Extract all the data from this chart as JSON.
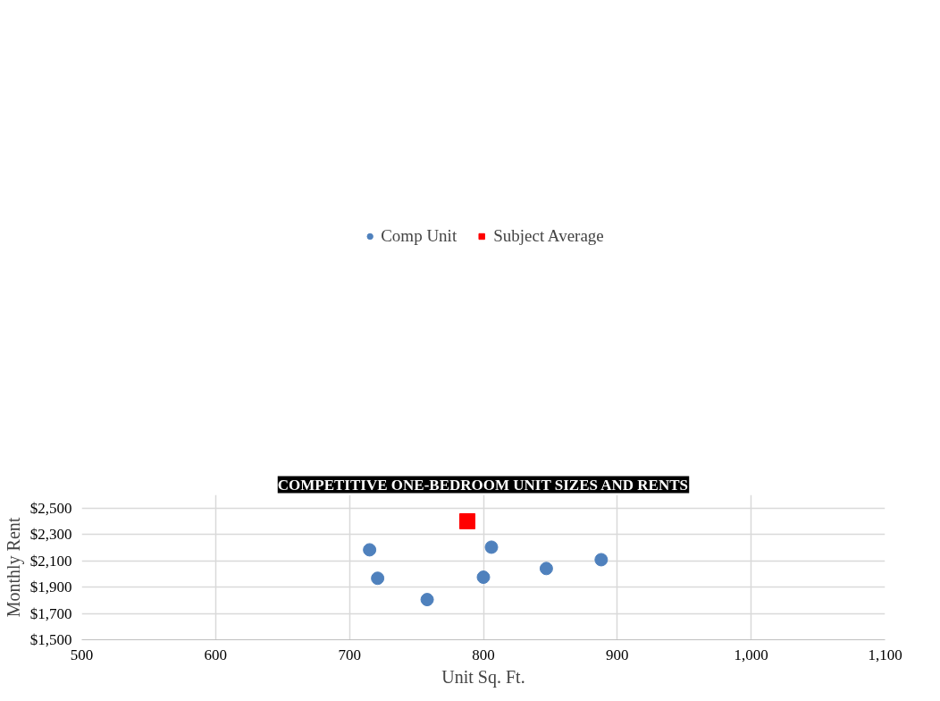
{
  "chart_data": {
    "type": "scatter",
    "title": "COMPETITIVE ONE-BEDROOM UNIT SIZES AND RENTS",
    "xlabel": "Unit Sq. Ft.",
    "ylabel": "Monthly Rent",
    "xlim": [
      500,
      1100
    ],
    "xticks": [
      500,
      600,
      700,
      800,
      900,
      {
        "value": 1000,
        "label": "1,000"
      },
      {
        "value": 1100,
        "label": "1,100"
      }
    ],
    "ylim": [
      1500,
      2600
    ],
    "yticks": [
      {
        "value": 1500,
        "label": "$1,500"
      },
      {
        "value": 1700,
        "label": "$1,700"
      },
      {
        "value": 1900,
        "label": "$1,900"
      },
      {
        "value": 2100,
        "label": "$2,100"
      },
      {
        "value": 2300,
        "label": "$2,300"
      },
      {
        "value": 2500,
        "label": "$2,500"
      }
    ],
    "grid": true,
    "legend": "top",
    "series": [
      {
        "name": "Comp Unit",
        "color": "#4f81bd",
        "marker": "circle",
        "x": [
          715,
          806,
          888,
          847,
          800,
          721,
          758
        ],
        "values": [
          2183,
          2203,
          2108,
          2041,
          1975,
          1967,
          1805
        ]
      },
      {
        "name": "Subject Average",
        "color": "#ff0000",
        "marker": "square",
        "x": [
          788
        ],
        "values": [
          2400
        ]
      }
    ]
  }
}
